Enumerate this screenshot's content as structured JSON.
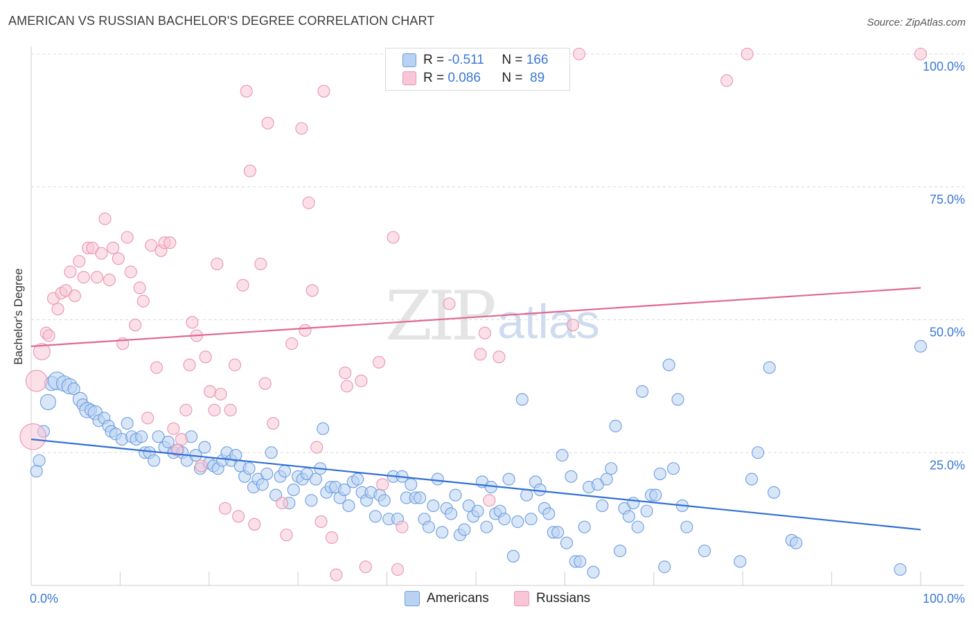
{
  "header": {
    "title": "AMERICAN VS RUSSIAN BACHELOR'S DEGREE CORRELATION CHART",
    "source": "Source: ZipAtlas.com"
  },
  "watermark": {
    "zip": "ZIP",
    "atlas": "atlas"
  },
  "legend": {
    "americans": {
      "r_label": "R = ",
      "r_value": "-0.511",
      "n_label": "N = ",
      "n_value": "166"
    },
    "russians": {
      "r_label": "R = ",
      "r_value": "0.086",
      "n_label": "N = ",
      "n_value": " 89"
    }
  },
  "colors": {
    "americans_fill": "#b9d2f2",
    "americans_stroke": "#6a9de0",
    "americans_line": "#2f6fd4",
    "russians_fill": "#f8c6d6",
    "russians_stroke": "#ea93b0",
    "russians_line": "#e2668f",
    "grid": "#d8d8d8",
    "axis_text": "#3a78d4"
  },
  "chart_data": {
    "type": "scatter",
    "title": "AMERICAN VS RUSSIAN BACHELOR'S DEGREE CORRELATION CHART",
    "xlabel": "",
    "ylabel": "Bachelor's Degree",
    "xlim": [
      0,
      100
    ],
    "ylim": [
      0,
      100
    ],
    "x_tick_labels": [
      "0.0%",
      "100.0%"
    ],
    "y_tick_labels": [
      "100.0%",
      "75.0%",
      "50.0%",
      "25.0%"
    ],
    "y_ticks": [
      100,
      75,
      50,
      25
    ],
    "legend_bottom": [
      "Americans",
      "Russians"
    ],
    "series": [
      {
        "name": "Americans",
        "trend": {
          "x": [
            0,
            100
          ],
          "y": [
            27.5,
            10.5
          ]
        },
        "points": [
          {
            "x": 0.6,
            "y": 21.5
          },
          {
            "x": 0.9,
            "y": 23.5
          },
          {
            "x": 1.4,
            "y": 29
          },
          {
            "x": 1.9,
            "y": 34.5,
            "s": 1.3
          },
          {
            "x": 2.3,
            "y": 38,
            "s": 1.2
          },
          {
            "x": 2.9,
            "y": 38.5,
            "s": 1.5
          },
          {
            "x": 3.7,
            "y": 38,
            "s": 1.3
          },
          {
            "x": 4.3,
            "y": 37.5,
            "s": 1.3
          },
          {
            "x": 4.8,
            "y": 37
          },
          {
            "x": 5.5,
            "y": 35,
            "s": 1.2
          },
          {
            "x": 5.8,
            "y": 34
          },
          {
            "x": 6.3,
            "y": 33,
            "s": 1.3
          },
          {
            "x": 6.7,
            "y": 33
          },
          {
            "x": 7.2,
            "y": 32.5,
            "s": 1.2
          },
          {
            "x": 7.6,
            "y": 31
          },
          {
            "x": 8.2,
            "y": 31.5
          },
          {
            "x": 8.7,
            "y": 30
          },
          {
            "x": 9.0,
            "y": 29
          },
          {
            "x": 9.5,
            "y": 28.5
          },
          {
            "x": 10.2,
            "y": 27.5
          },
          {
            "x": 10.8,
            "y": 30.5
          },
          {
            "x": 11.3,
            "y": 28
          },
          {
            "x": 11.8,
            "y": 27.5
          },
          {
            "x": 12.4,
            "y": 28
          },
          {
            "x": 12.8,
            "y": 25
          },
          {
            "x": 13.3,
            "y": 25
          },
          {
            "x": 13.8,
            "y": 23.5
          },
          {
            "x": 14.3,
            "y": 28
          },
          {
            "x": 15.0,
            "y": 26
          },
          {
            "x": 15.4,
            "y": 27
          },
          {
            "x": 16.0,
            "y": 25
          },
          {
            "x": 16.5,
            "y": 25.5
          },
          {
            "x": 17.0,
            "y": 25
          },
          {
            "x": 17.5,
            "y": 23.5
          },
          {
            "x": 18.0,
            "y": 28
          },
          {
            "x": 18.5,
            "y": 24.5
          },
          {
            "x": 19.0,
            "y": 22
          },
          {
            "x": 19.5,
            "y": 26
          },
          {
            "x": 20.0,
            "y": 23
          },
          {
            "x": 20.5,
            "y": 22.5
          },
          {
            "x": 21.0,
            "y": 22
          },
          {
            "x": 21.5,
            "y": 23.5
          },
          {
            "x": 22.0,
            "y": 25
          },
          {
            "x": 22.5,
            "y": 23.5
          },
          {
            "x": 23.0,
            "y": 24.5
          },
          {
            "x": 23.5,
            "y": 22.5
          },
          {
            "x": 24.0,
            "y": 20.5
          },
          {
            "x": 24.5,
            "y": 22
          },
          {
            "x": 25.0,
            "y": 18.5
          },
          {
            "x": 25.5,
            "y": 20
          },
          {
            "x": 26.0,
            "y": 19
          },
          {
            "x": 26.5,
            "y": 21
          },
          {
            "x": 27.0,
            "y": 25
          },
          {
            "x": 27.5,
            "y": 17
          },
          {
            "x": 28.0,
            "y": 20.5
          },
          {
            "x": 28.5,
            "y": 21.5
          },
          {
            "x": 29.0,
            "y": 15.5
          },
          {
            "x": 29.5,
            "y": 18
          },
          {
            "x": 30.0,
            "y": 20.5
          },
          {
            "x": 30.5,
            "y": 20
          },
          {
            "x": 31.0,
            "y": 21
          },
          {
            "x": 31.5,
            "y": 16
          },
          {
            "x": 32.0,
            "y": 20
          },
          {
            "x": 32.5,
            "y": 22
          },
          {
            "x": 32.8,
            "y": 29.5
          },
          {
            "x": 33.2,
            "y": 17.5
          },
          {
            "x": 33.7,
            "y": 18.5
          },
          {
            "x": 34.2,
            "y": 18.5
          },
          {
            "x": 34.7,
            "y": 16.5
          },
          {
            "x": 35.2,
            "y": 18
          },
          {
            "x": 35.7,
            "y": 15
          },
          {
            "x": 36.2,
            "y": 19.5
          },
          {
            "x": 36.7,
            "y": 20
          },
          {
            "x": 37.2,
            "y": 17.5
          },
          {
            "x": 37.7,
            "y": 16
          },
          {
            "x": 38.2,
            "y": 17.5
          },
          {
            "x": 38.7,
            "y": 13
          },
          {
            "x": 39.2,
            "y": 17
          },
          {
            "x": 39.7,
            "y": 16
          },
          {
            "x": 40.2,
            "y": 12.5
          },
          {
            "x": 40.7,
            "y": 20.5
          },
          {
            "x": 41.2,
            "y": 12.5
          },
          {
            "x": 41.7,
            "y": 20.5
          },
          {
            "x": 42.2,
            "y": 16.5
          },
          {
            "x": 42.7,
            "y": 19
          },
          {
            "x": 43.2,
            "y": 16.5
          },
          {
            "x": 43.7,
            "y": 16.5
          },
          {
            "x": 44.2,
            "y": 12.5
          },
          {
            "x": 44.7,
            "y": 11
          },
          {
            "x": 45.2,
            "y": 15
          },
          {
            "x": 45.7,
            "y": 20
          },
          {
            "x": 46.2,
            "y": 10
          },
          {
            "x": 46.7,
            "y": 14.5
          },
          {
            "x": 47.2,
            "y": 13.5
          },
          {
            "x": 47.7,
            "y": 17
          },
          {
            "x": 48.2,
            "y": 9.5
          },
          {
            "x": 48.7,
            "y": 10.5
          },
          {
            "x": 49.2,
            "y": 15
          },
          {
            "x": 49.7,
            "y": 13
          },
          {
            "x": 50.2,
            "y": 14
          },
          {
            "x": 50.7,
            "y": 19.5
          },
          {
            "x": 51.2,
            "y": 11
          },
          {
            "x": 51.7,
            "y": 18.5
          },
          {
            "x": 52.2,
            "y": 13.5
          },
          {
            "x": 52.7,
            "y": 14
          },
          {
            "x": 53.2,
            "y": 12.5
          },
          {
            "x": 53.7,
            "y": 20
          },
          {
            "x": 54.2,
            "y": 5.5
          },
          {
            "x": 54.7,
            "y": 12
          },
          {
            "x": 55.2,
            "y": 35
          },
          {
            "x": 55.7,
            "y": 17
          },
          {
            "x": 56.2,
            "y": 12.5
          },
          {
            "x": 56.7,
            "y": 19.5
          },
          {
            "x": 57.2,
            "y": 18
          },
          {
            "x": 57.7,
            "y": 14.5
          },
          {
            "x": 58.2,
            "y": 13.5
          },
          {
            "x": 58.7,
            "y": 10
          },
          {
            "x": 59.2,
            "y": 10
          },
          {
            "x": 59.7,
            "y": 24.5
          },
          {
            "x": 60.2,
            "y": 8
          },
          {
            "x": 60.7,
            "y": 20.5
          },
          {
            "x": 61.2,
            "y": 4.5
          },
          {
            "x": 61.7,
            "y": 4.5
          },
          {
            "x": 62.2,
            "y": 11
          },
          {
            "x": 62.7,
            "y": 18.5
          },
          {
            "x": 63.2,
            "y": 2.5
          },
          {
            "x": 63.7,
            "y": 19
          },
          {
            "x": 64.2,
            "y": 15
          },
          {
            "x": 64.7,
            "y": 20
          },
          {
            "x": 65.2,
            "y": 22
          },
          {
            "x": 65.7,
            "y": 30
          },
          {
            "x": 66.2,
            "y": 6.5
          },
          {
            "x": 66.7,
            "y": 14.5
          },
          {
            "x": 67.2,
            "y": 13
          },
          {
            "x": 67.7,
            "y": 15.5
          },
          {
            "x": 68.2,
            "y": 11
          },
          {
            "x": 68.7,
            "y": 36.5
          },
          {
            "x": 69.2,
            "y": 14
          },
          {
            "x": 69.7,
            "y": 17
          },
          {
            "x": 70.2,
            "y": 17
          },
          {
            "x": 70.7,
            "y": 21
          },
          {
            "x": 71.2,
            "y": 3.5
          },
          {
            "x": 71.7,
            "y": 41.5
          },
          {
            "x": 72.2,
            "y": 22
          },
          {
            "x": 72.7,
            "y": 35
          },
          {
            "x": 73.2,
            "y": 15
          },
          {
            "x": 73.7,
            "y": 11
          },
          {
            "x": 75.7,
            "y": 6.5
          },
          {
            "x": 79.7,
            "y": 4.5
          },
          {
            "x": 81.0,
            "y": 20
          },
          {
            "x": 81.7,
            "y": 25
          },
          {
            "x": 83.0,
            "y": 41
          },
          {
            "x": 83.5,
            "y": 17.5
          },
          {
            "x": 85.5,
            "y": 8.5
          },
          {
            "x": 86.0,
            "y": 8
          },
          {
            "x": 97.7,
            "y": 3
          },
          {
            "x": 100.0,
            "y": 45
          }
        ]
      },
      {
        "name": "Russians",
        "trend": {
          "x": [
            0,
            100
          ],
          "y": [
            45,
            56
          ]
        },
        "points": [
          {
            "x": 0.2,
            "y": 28,
            "s": 2.2
          },
          {
            "x": 0.6,
            "y": 38.5,
            "s": 1.8
          },
          {
            "x": 1.2,
            "y": 44,
            "s": 1.4
          },
          {
            "x": 1.7,
            "y": 47.5
          },
          {
            "x": 2.0,
            "y": 47
          },
          {
            "x": 2.5,
            "y": 54
          },
          {
            "x": 3.0,
            "y": 52
          },
          {
            "x": 3.4,
            "y": 55
          },
          {
            "x": 3.9,
            "y": 55.5
          },
          {
            "x": 4.4,
            "y": 59
          },
          {
            "x": 4.9,
            "y": 54.5
          },
          {
            "x": 5.4,
            "y": 61
          },
          {
            "x": 5.9,
            "y": 58
          },
          {
            "x": 6.4,
            "y": 63.5
          },
          {
            "x": 6.9,
            "y": 63.5
          },
          {
            "x": 7.4,
            "y": 58
          },
          {
            "x": 7.9,
            "y": 62.5
          },
          {
            "x": 8.3,
            "y": 69
          },
          {
            "x": 8.8,
            "y": 57.5
          },
          {
            "x": 9.2,
            "y": 63.5
          },
          {
            "x": 9.8,
            "y": 61.5
          },
          {
            "x": 10.3,
            "y": 45.5
          },
          {
            "x": 10.8,
            "y": 65.5
          },
          {
            "x": 11.2,
            "y": 59
          },
          {
            "x": 11.7,
            "y": 49
          },
          {
            "x": 12.2,
            "y": 56
          },
          {
            "x": 12.6,
            "y": 53.5
          },
          {
            "x": 13.1,
            "y": 31.5
          },
          {
            "x": 13.5,
            "y": 64
          },
          {
            "x": 14.1,
            "y": 41
          },
          {
            "x": 14.6,
            "y": 63
          },
          {
            "x": 15.0,
            "y": 64.5
          },
          {
            "x": 15.6,
            "y": 64.5
          },
          {
            "x": 16.0,
            "y": 29.5
          },
          {
            "x": 16.4,
            "y": 25.5
          },
          {
            "x": 16.9,
            "y": 27.5
          },
          {
            "x": 17.4,
            "y": 33
          },
          {
            "x": 17.8,
            "y": 41.5
          },
          {
            "x": 18.1,
            "y": 49.5
          },
          {
            "x": 18.6,
            "y": 47
          },
          {
            "x": 19.1,
            "y": 22.5
          },
          {
            "x": 19.6,
            "y": 43
          },
          {
            "x": 20.1,
            "y": 36.5
          },
          {
            "x": 20.6,
            "y": 33
          },
          {
            "x": 20.9,
            "y": 60.5
          },
          {
            "x": 21.3,
            "y": 36
          },
          {
            "x": 21.8,
            "y": 14.5
          },
          {
            "x": 22.4,
            "y": 33
          },
          {
            "x": 22.9,
            "y": 41.5
          },
          {
            "x": 23.3,
            "y": 13
          },
          {
            "x": 23.8,
            "y": 56.5
          },
          {
            "x": 24.2,
            "y": 93
          },
          {
            "x": 24.6,
            "y": 78
          },
          {
            "x": 25.1,
            "y": 11.5
          },
          {
            "x": 25.8,
            "y": 60.5
          },
          {
            "x": 26.3,
            "y": 38
          },
          {
            "x": 26.6,
            "y": 87
          },
          {
            "x": 27.2,
            "y": 30.5
          },
          {
            "x": 28.2,
            "y": 15.5
          },
          {
            "x": 28.7,
            "y": 9.5
          },
          {
            "x": 29.3,
            "y": 45.5
          },
          {
            "x": 30.4,
            "y": 86
          },
          {
            "x": 30.8,
            "y": 48
          },
          {
            "x": 31.2,
            "y": 72
          },
          {
            "x": 31.6,
            "y": 55.5
          },
          {
            "x": 32.1,
            "y": 26
          },
          {
            "x": 32.6,
            "y": 12
          },
          {
            "x": 32.9,
            "y": 93
          },
          {
            "x": 33.8,
            "y": 9
          },
          {
            "x": 34.3,
            "y": 2
          },
          {
            "x": 35.3,
            "y": 40
          },
          {
            "x": 35.5,
            "y": 37.5
          },
          {
            "x": 37.1,
            "y": 38.5
          },
          {
            "x": 37.6,
            "y": 3.5
          },
          {
            "x": 39.1,
            "y": 42
          },
          {
            "x": 39.5,
            "y": 19
          },
          {
            "x": 40.7,
            "y": 65.5
          },
          {
            "x": 41.2,
            "y": 3
          },
          {
            "x": 41.7,
            "y": 11
          },
          {
            "x": 47.0,
            "y": 53
          },
          {
            "x": 50.5,
            "y": 43.5
          },
          {
            "x": 51.0,
            "y": 47.5
          },
          {
            "x": 51.5,
            "y": 16
          },
          {
            "x": 52.6,
            "y": 43
          },
          {
            "x": 60.9,
            "y": 49
          },
          {
            "x": 61.6,
            "y": 100
          },
          {
            "x": 78.2,
            "y": 95
          },
          {
            "x": 80.5,
            "y": 100
          },
          {
            "x": 100.0,
            "y": 100
          }
        ]
      }
    ]
  },
  "bottom_legend": {
    "americans": "Americans",
    "russians": "Russians"
  }
}
